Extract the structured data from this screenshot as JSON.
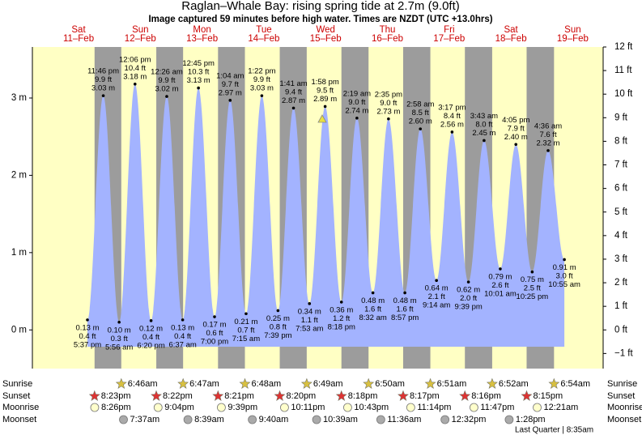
{
  "chart_data": {
    "type": "area",
    "title": "Raglan–Whale Bay: rising  spring tide at 2.7m (9.0ft)",
    "subtitle": "Image captured 59 minutes before high water. Times are NZDT (UTC +13.0hrs)",
    "fill_color": "#a3b3ff",
    "day_color": "#ffffc4",
    "night_color": "#9c9c9c",
    "ylim": [
      -0.5,
      3.66
    ],
    "yticks": [
      {
        "value": 0,
        "label": "0 m"
      },
      {
        "value": 1,
        "label": "1 m"
      },
      {
        "value": 2,
        "label": "2 m"
      },
      {
        "value": 3,
        "label": "3 m"
      }
    ],
    "y2lim": [
      -1.64,
      12
    ],
    "y2ticks": [
      {
        "value": -1,
        "label": "−1 ft"
      },
      {
        "value": 0,
        "label": "0 ft"
      },
      {
        "value": 1,
        "label": "1 ft"
      },
      {
        "value": 2,
        "label": "2 ft"
      },
      {
        "value": 3,
        "label": "3 ft"
      },
      {
        "value": 4,
        "label": "4 ft"
      },
      {
        "value": 5,
        "label": "5 ft"
      },
      {
        "value": 6,
        "label": "6 ft"
      },
      {
        "value": 7,
        "label": "7 ft"
      },
      {
        "value": 8,
        "label": "8 ft"
      },
      {
        "value": 9,
        "label": "9 ft"
      },
      {
        "value": 10,
        "label": "10 ft"
      },
      {
        "value": 11,
        "label": "11 ft"
      },
      {
        "value": 12,
        "label": "12 ft"
      }
    ],
    "row_labels": [
      "Sunrise",
      "Sunset",
      "Moonrise",
      "Moonset"
    ],
    "moon_phase": "Last Quarter | 8:35am",
    "days": [
      {
        "weekday": "Sat",
        "date": "11–Feb",
        "sunset": "8:23pm",
        "moonrise": "8:26pm",
        "tides": [
          {
            "time": "5:37 pm",
            "ft": {
              "value": 0.4,
              "label": "0.4 ft"
            },
            "m": {
              "value": 0.13,
              "label": "0.13 m"
            }
          },
          {
            "time": "11:46 pm",
            "ft": {
              "value": 9.9,
              "label": "9.9 ft"
            },
            "m": {
              "value": 3.03,
              "label": "3.03 m"
            }
          }
        ]
      },
      {
        "weekday": "Sun",
        "date": "12–Feb",
        "sunrise": "6:46am",
        "sunset": "8:22pm",
        "moonrise": "9:04pm",
        "moonset": "7:37am",
        "tides": [
          {
            "time": "5:56 am",
            "ft": {
              "value": 0.3,
              "label": "0.3 ft"
            },
            "m": {
              "value": 0.1,
              "label": "0.10 m"
            }
          },
          {
            "time": "12:06 pm",
            "ft": {
              "value": 10.4,
              "label": "10.4 ft"
            },
            "m": {
              "value": 3.18,
              "label": "3.18 m"
            }
          },
          {
            "time": "6:20 pm",
            "ft": {
              "value": 0.4,
              "label": "0.4 ft"
            },
            "m": {
              "value": 0.12,
              "label": "0.12 m"
            }
          }
        ]
      },
      {
        "weekday": "Mon",
        "date": "13–Feb",
        "sunrise": "6:47am",
        "sunset": "8:21pm",
        "moonrise": "9:39pm",
        "moonset": "8:39am",
        "tides": [
          {
            "time": "12:26 am",
            "ft": {
              "value": 9.9,
              "label": "9.9 ft"
            },
            "m": {
              "value": 3.02,
              "label": "3.02 m"
            }
          },
          {
            "time": "6:37 am",
            "ft": {
              "value": 0.4,
              "label": "0.4 ft"
            },
            "m": {
              "value": 0.13,
              "label": "0.13 m"
            }
          },
          {
            "time": "12:45 pm",
            "ft": {
              "value": 10.3,
              "label": "10.3 ft"
            },
            "m": {
              "value": 3.13,
              "label": "3.13 m"
            }
          },
          {
            "time": "7:00 pm",
            "ft": {
              "value": 0.6,
              "label": "0.6 ft"
            },
            "m": {
              "value": 0.17,
              "label": "0.17 m"
            }
          }
        ]
      },
      {
        "weekday": "Tue",
        "date": "14–Feb",
        "sunrise": "6:48am",
        "sunset": "8:20pm",
        "moonrise": "10:11pm",
        "moonset": "9:40am",
        "tides": [
          {
            "time": "1:04 am",
            "ft": {
              "value": 9.7,
              "label": "9.7 ft"
            },
            "m": {
              "value": 2.97,
              "label": "2.97 m"
            }
          },
          {
            "time": "7:15 am",
            "ft": {
              "value": 0.7,
              "label": "0.7 ft"
            },
            "m": {
              "value": 0.21,
              "label": "0.21 m"
            }
          },
          {
            "time": "1:22 pm",
            "ft": {
              "value": 9.9,
              "label": "9.9 ft"
            },
            "m": {
              "value": 3.03,
              "label": "3.03 m"
            }
          },
          {
            "time": "7:39 pm",
            "ft": {
              "value": 0.8,
              "label": "0.8 ft"
            },
            "m": {
              "value": 0.25,
              "label": "0.25 m"
            }
          }
        ]
      },
      {
        "weekday": "Wed",
        "date": "15–Feb",
        "sunrise": "6:49am",
        "sunset": "8:18pm",
        "moonrise": "10:43pm",
        "moonset": "10:39am",
        "tides": [
          {
            "time": "1:41 am",
            "ft": {
              "value": 9.4,
              "label": "9.4 ft"
            },
            "m": {
              "value": 2.87,
              "label": "2.87 m"
            }
          },
          {
            "time": "7:53 am",
            "ft": {
              "value": 1.1,
              "label": "1.1 ft"
            },
            "m": {
              "value": 0.34,
              "label": "0.34 m"
            }
          },
          {
            "time": "1:58 pm",
            "ft": {
              "value": 9.5,
              "label": "9.5 ft"
            },
            "m": {
              "value": 2.89,
              "label": "2.89 m"
            }
          },
          {
            "time": "8:18 pm",
            "ft": {
              "value": 1.2,
              "label": "1.2 ft"
            },
            "m": {
              "value": 0.36,
              "label": "0.36 m"
            }
          }
        ]
      },
      {
        "weekday": "Thu",
        "date": "16–Feb",
        "sunrise": "6:50am",
        "sunset": "8:17pm",
        "moonrise": "11:14pm",
        "moonset": "11:36am",
        "tides": [
          {
            "time": "2:19 am",
            "ft": {
              "value": 9.0,
              "label": "9.0 ft"
            },
            "m": {
              "value": 2.74,
              "label": "2.74 m"
            }
          },
          {
            "time": "8:32 am",
            "ft": {
              "value": 1.6,
              "label": "1.6 ft"
            },
            "m": {
              "value": 0.48,
              "label": "0.48 m"
            }
          },
          {
            "time": "2:35 pm",
            "ft": {
              "value": 9.0,
              "label": "9.0 ft"
            },
            "m": {
              "value": 2.73,
              "label": "2.73 m"
            }
          },
          {
            "time": "8:57 pm",
            "ft": {
              "value": 1.6,
              "label": "1.6 ft"
            },
            "m": {
              "value": 0.48,
              "label": "0.48 m"
            }
          }
        ]
      },
      {
        "weekday": "Fri",
        "date": "17–Feb",
        "sunrise": "6:51am",
        "sunset": "8:16pm",
        "moonrise": "11:47pm",
        "moonset": "12:32pm",
        "tides": [
          {
            "time": "2:58 am",
            "ft": {
              "value": 8.5,
              "label": "8.5 ft"
            },
            "m": {
              "value": 2.6,
              "label": "2.60 m"
            }
          },
          {
            "time": "9:14 am",
            "ft": {
              "value": 2.1,
              "label": "2.1 ft"
            },
            "m": {
              "value": 0.64,
              "label": "0.64 m"
            }
          },
          {
            "time": "3:17 pm",
            "ft": {
              "value": 8.4,
              "label": "8.4 ft"
            },
            "m": {
              "value": 2.56,
              "label": "2.56 m"
            }
          },
          {
            "time": "9:39 pm",
            "ft": {
              "value": 2.0,
              "label": "2.0 ft"
            },
            "m": {
              "value": 0.62,
              "label": "0.62 m"
            }
          }
        ]
      },
      {
        "weekday": "Sat",
        "date": "18–Feb",
        "sunrise": "6:52am",
        "sunset": "8:15pm",
        "moonset": "1:28pm",
        "tides": [
          {
            "time": "3:43 am",
            "ft": {
              "value": 8.0,
              "label": "8.0 ft"
            },
            "m": {
              "value": 2.45,
              "label": "2.45 m"
            }
          },
          {
            "time": "10:01 am",
            "ft": {
              "value": 2.6,
              "label": "2.6 ft"
            },
            "m": {
              "value": 0.79,
              "label": "0.79 m"
            }
          },
          {
            "time": "4:05 pm",
            "ft": {
              "value": 7.9,
              "label": "7.9 ft"
            },
            "m": {
              "value": 2.4,
              "label": "2.40 m"
            }
          },
          {
            "time": "10:25 pm",
            "ft": {
              "value": 2.5,
              "label": "2.5 ft"
            },
            "m": {
              "value": 0.75,
              "label": "0.75 m"
            }
          }
        ]
      },
      {
        "weekday": "Sun",
        "date": "19–Feb",
        "sunrise": "6:54am",
        "moonrise": "12:21am",
        "tides": [
          {
            "time": "4:36 am",
            "ft": {
              "value": 7.6,
              "label": "7.6 ft"
            },
            "m": {
              "value": 2.32,
              "label": "2.32 m"
            }
          },
          {
            "time": "10:55 am",
            "ft": {
              "value": 3.0,
              "label": "3.0 ft"
            },
            "m": {
              "value": 0.91,
              "label": "0.91 m"
            }
          }
        ]
      }
    ]
  }
}
